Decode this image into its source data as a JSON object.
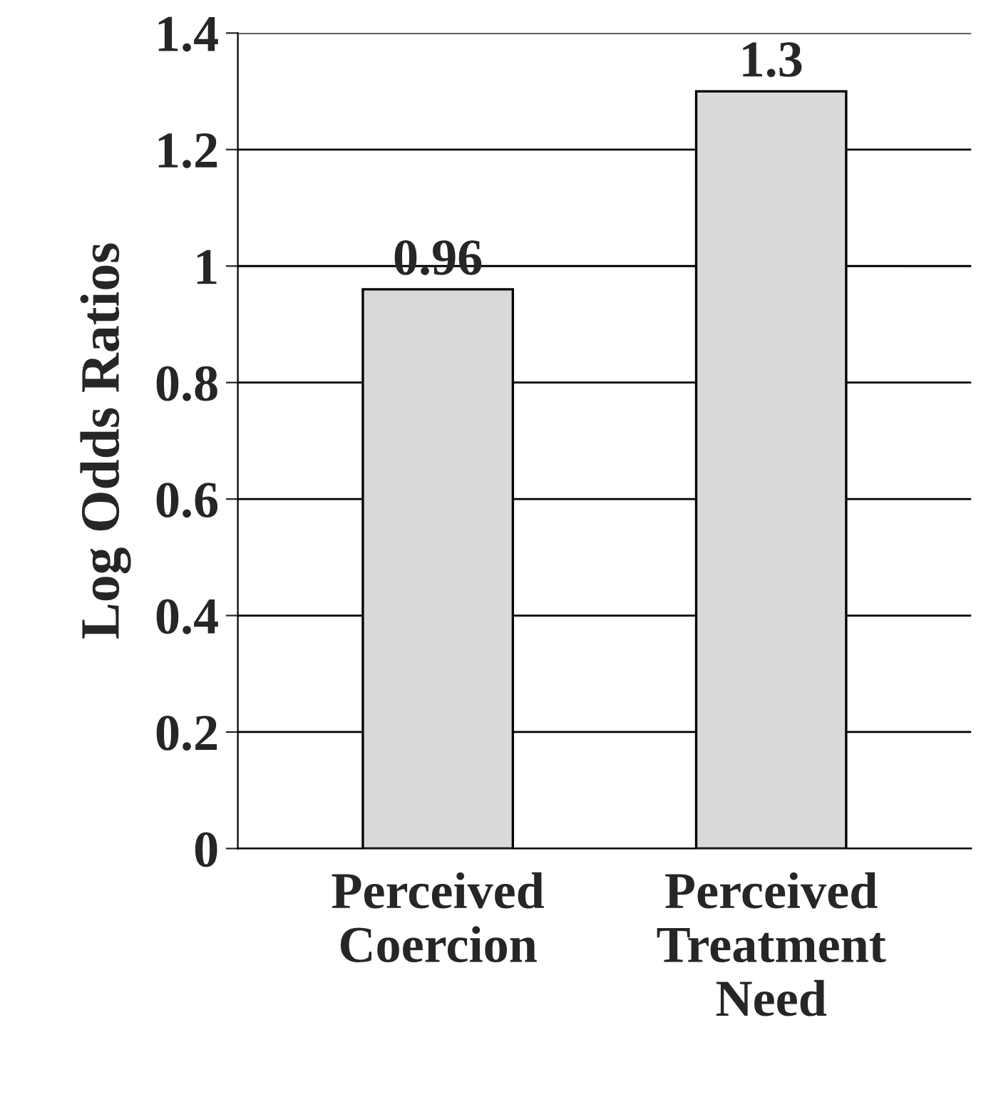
{
  "chart_data": {
    "type": "bar",
    "ylabel": "Log Odds Ratios",
    "categories": [
      "Perceived\nCoercion",
      "Perceived\nTreatment\nNeed"
    ],
    "values": [
      0.96,
      1.3
    ],
    "color": "#d9d9d9",
    "data_labels": true,
    "ylim": [
      0,
      1.4
    ],
    "yticks": [
      0,
      0.2,
      0.4,
      0.6,
      0.8,
      1,
      1.2,
      1.4
    ],
    "grid": "y",
    "legend": false
  }
}
